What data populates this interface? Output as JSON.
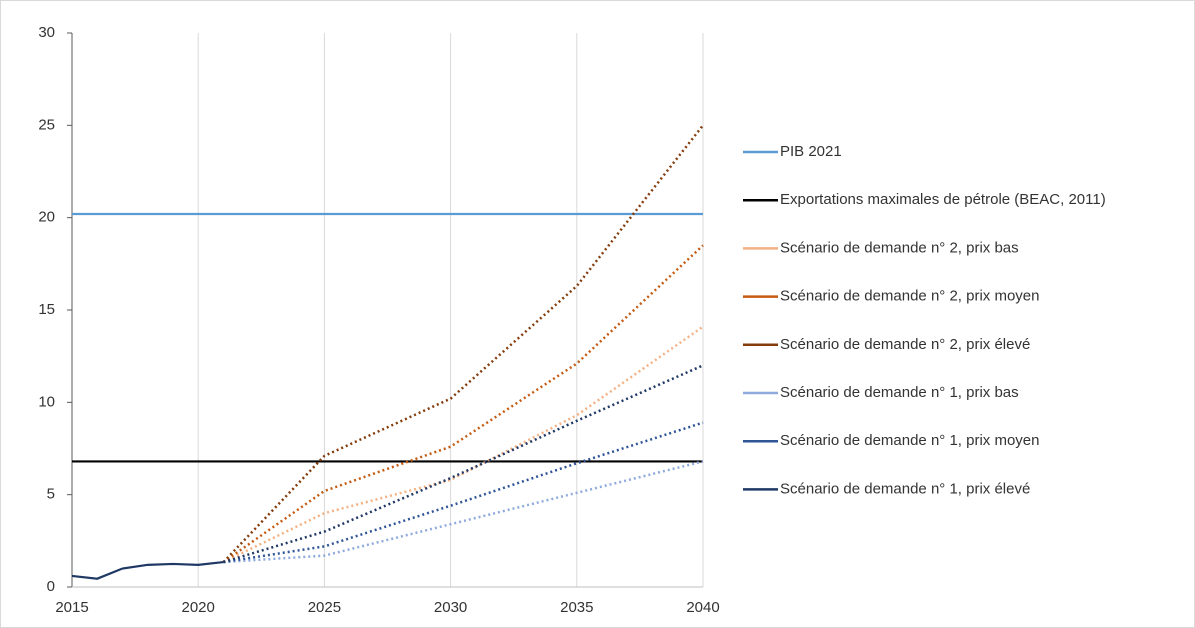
{
  "chart_data": {
    "type": "line",
    "x": [
      2015,
      2016,
      2017,
      2018,
      2019,
      2020,
      2021,
      2025,
      2030,
      2035,
      2040
    ],
    "xlim": [
      2015,
      2040
    ],
    "xticks": [
      2015,
      2020,
      2025,
      2030,
      2035,
      2040
    ],
    "ylim": [
      0,
      30
    ],
    "yticks": [
      0,
      5,
      10,
      15,
      20,
      25,
      30
    ],
    "xgrid": true,
    "legend": "right",
    "series": [
      {
        "color": "#203864",
        "style": "solid",
        "values": [
          0.6,
          0.45,
          1.0,
          1.2,
          1.25,
          1.2,
          1.35,
          null,
          null,
          null,
          null
        ]
      },
      {
        "name": "PIB 2021",
        "color": "#5b9bd5",
        "style": "solid",
        "values": [
          20.2,
          20.2,
          20.2,
          20.2,
          20.2,
          20.2,
          20.2,
          20.2,
          20.2,
          20.2,
          20.2
        ]
      },
      {
        "name": "Exportations maximales de pétrole (BEAC, 2011)",
        "color": "#000000",
        "style": "solid",
        "values": [
          6.8,
          6.8,
          6.8,
          6.8,
          6.8,
          6.8,
          6.8,
          6.8,
          6.8,
          6.8,
          6.8
        ]
      },
      {
        "name": "Scénario de demande n° 2, prix bas",
        "color": "#f4b183",
        "style": "dotted",
        "values": [
          null,
          null,
          null,
          null,
          null,
          null,
          1.35,
          4.0,
          5.8,
          9.3,
          14.1
        ]
      },
      {
        "name": "Scénario de demande n° 2, prix moyen",
        "color": "#c55a11",
        "style": "dotted",
        "values": [
          null,
          null,
          null,
          null,
          null,
          null,
          1.35,
          5.2,
          7.6,
          12.1,
          18.5
        ]
      },
      {
        "name": "Scénario de demande n° 2, prix élevé",
        "color": "#843c0c",
        "style": "dotted",
        "values": [
          null,
          null,
          null,
          null,
          null,
          null,
          1.35,
          7.1,
          10.2,
          16.3,
          25.0
        ]
      },
      {
        "name": "Scénario de demande n° 1, prix bas",
        "color": "#8faadc",
        "style": "dotted",
        "values": [
          null,
          null,
          null,
          null,
          null,
          null,
          1.35,
          1.7,
          3.4,
          5.1,
          6.8
        ]
      },
      {
        "name": "Scénario de demande n° 1, prix moyen",
        "color": "#2f5597",
        "style": "dotted",
        "values": [
          null,
          null,
          null,
          null,
          null,
          null,
          1.35,
          2.2,
          4.4,
          6.7,
          8.9
        ]
      },
      {
        "name": "Scénario de demande n° 1, prix élevé",
        "color": "#203864",
        "style": "dotted",
        "values": [
          null,
          null,
          null,
          null,
          null,
          null,
          1.35,
          3.0,
          5.9,
          9.0,
          12.0
        ]
      }
    ]
  }
}
